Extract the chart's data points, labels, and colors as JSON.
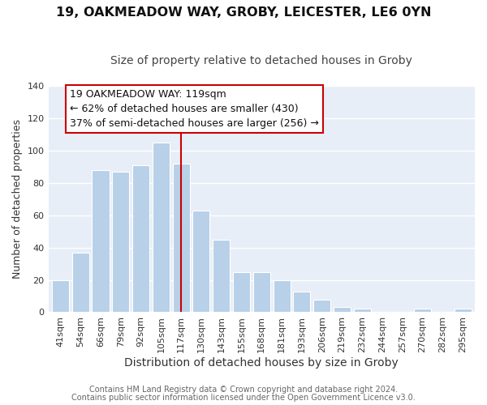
{
  "title": "19, OAKMEADOW WAY, GROBY, LEICESTER, LE6 0YN",
  "subtitle": "Size of property relative to detached houses in Groby",
  "xlabel": "Distribution of detached houses by size in Groby",
  "ylabel": "Number of detached properties",
  "categories": [
    "41sqm",
    "54sqm",
    "66sqm",
    "79sqm",
    "92sqm",
    "105sqm",
    "117sqm",
    "130sqm",
    "143sqm",
    "155sqm",
    "168sqm",
    "181sqm",
    "193sqm",
    "206sqm",
    "219sqm",
    "232sqm",
    "244sqm",
    "257sqm",
    "270sqm",
    "282sqm",
    "295sqm"
  ],
  "values": [
    20,
    37,
    88,
    87,
    91,
    105,
    92,
    63,
    45,
    25,
    25,
    20,
    13,
    8,
    3,
    2,
    0,
    0,
    2,
    0,
    2
  ],
  "bar_color": "#b8d0e8",
  "bar_edge_color": "#ffffff",
  "highlight_index": 6,
  "highlight_line_color": "#cc0000",
  "ylim": [
    0,
    140
  ],
  "yticks": [
    0,
    20,
    40,
    60,
    80,
    100,
    120,
    140
  ],
  "annotation_title": "19 OAKMEADOW WAY: 119sqm",
  "annotation_line1": "← 62% of detached houses are smaller (430)",
  "annotation_line2": "37% of semi-detached houses are larger (256) →",
  "annotation_box_edge": "#cc0000",
  "footer_line1": "Contains HM Land Registry data © Crown copyright and database right 2024.",
  "footer_line2": "Contains public sector information licensed under the Open Government Licence v3.0.",
  "title_fontsize": 11.5,
  "subtitle_fontsize": 10,
  "xlabel_fontsize": 10,
  "ylabel_fontsize": 9,
  "tick_fontsize": 8,
  "annotation_fontsize": 9,
  "footer_fontsize": 7,
  "fig_bg_color": "#ffffff",
  "plot_bg_color": "#e8eef7",
  "grid_color": "#ffffff"
}
